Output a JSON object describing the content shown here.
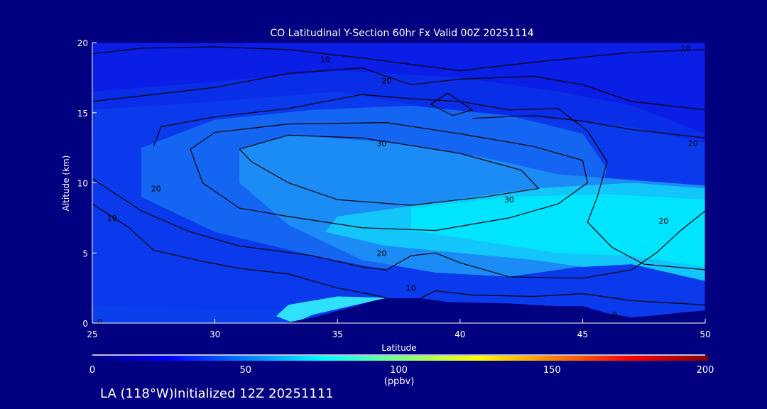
{
  "chart_data": {
    "type": "contour",
    "title": "CO Latitudinal Y-Section 60hr  Fx Valid 00Z 20251114",
    "xlabel": "Latitude",
    "ylabel": "Altitude (km)",
    "xlim": [
      25,
      50
    ],
    "ylim": [
      0,
      20
    ],
    "xticks": [
      "25",
      "30",
      "35",
      "40",
      "45",
      "50"
    ],
    "yticks": [
      "0",
      "5",
      "10",
      "15",
      "20"
    ],
    "colorbar": {
      "min": 0,
      "max": 200,
      "ticks": [
        "0",
        "50",
        "100",
        "150",
        "200"
      ],
      "unit": "(ppbv)",
      "stops": [
        [
          0,
          "#000080"
        ],
        [
          25,
          "#0000ff"
        ],
        [
          50,
          "#0080ff"
        ],
        [
          75,
          "#00ffff"
        ],
        [
          100,
          "#80ff80"
        ],
        [
          125,
          "#ffff00"
        ],
        [
          150,
          "#ff8000"
        ],
        [
          175,
          "#ff0000"
        ],
        [
          200,
          "#800000"
        ]
      ]
    },
    "filled_regions": [
      {
        "level": 15,
        "color": "#0a1ee6",
        "points": [
          [
            25,
            20
          ],
          [
            50,
            20
          ],
          [
            50,
            13.5
          ],
          [
            47,
            15.5
          ],
          [
            44,
            16.5
          ],
          [
            40,
            17.5
          ],
          [
            35,
            18
          ],
          [
            30,
            17.2
          ],
          [
            25,
            16.5
          ]
        ]
      },
      {
        "level": 20,
        "color": "#0a2ee8",
        "points": [
          [
            25,
            16.5
          ],
          [
            30,
            17.2
          ],
          [
            35,
            18
          ],
          [
            40,
            17.5
          ],
          [
            44,
            16.5
          ],
          [
            47,
            15.5
          ],
          [
            50,
            13.5
          ],
          [
            50,
            12.8
          ],
          [
            47,
            14
          ],
          [
            44,
            14.5
          ],
          [
            40,
            15
          ],
          [
            35,
            16.5
          ],
          [
            30,
            15.8
          ],
          [
            25,
            15.2
          ]
        ]
      },
      {
        "level": 25,
        "color": "#1466f2",
        "points": [
          [
            27,
            12.5
          ],
          [
            30,
            14.5
          ],
          [
            34,
            15.2
          ],
          [
            38,
            15.5
          ],
          [
            42,
            14.8
          ],
          [
            45,
            13.5
          ],
          [
            46,
            11
          ],
          [
            45.5,
            8
          ],
          [
            46,
            5.5
          ],
          [
            44,
            4.2
          ],
          [
            41,
            4.3
          ],
          [
            39,
            5
          ],
          [
            38,
            5
          ],
          [
            37,
            3.8
          ],
          [
            34,
            4.8
          ],
          [
            30,
            6.5
          ],
          [
            27,
            9
          ]
        ]
      },
      {
        "level": 35,
        "color": "#1b8cf5",
        "points": [
          [
            31,
            12.4
          ],
          [
            33,
            13.4
          ],
          [
            37,
            12.9
          ],
          [
            41,
            11.8
          ],
          [
            44,
            10.6
          ],
          [
            50,
            9.8
          ],
          [
            50,
            6
          ],
          [
            46,
            4.3
          ],
          [
            42,
            3.3
          ],
          [
            39,
            3.6
          ],
          [
            36,
            4.5
          ],
          [
            33,
            7
          ],
          [
            31,
            10
          ]
        ]
      },
      {
        "level": 40,
        "color": "#12c6fb",
        "points": [
          [
            35,
            7.6
          ],
          [
            39,
            8.6
          ],
          [
            43,
            9.6
          ],
          [
            47,
            10
          ],
          [
            50,
            9.6
          ],
          [
            50,
            3
          ],
          [
            47,
            4.2
          ],
          [
            45,
            4
          ],
          [
            43,
            4.5
          ],
          [
            40,
            5
          ],
          [
            37,
            5.5
          ],
          [
            34.5,
            6.5
          ]
        ]
      },
      {
        "level": 45,
        "color": "#00e4ff",
        "points": [
          [
            38,
            8.2
          ],
          [
            42,
            9
          ],
          [
            46,
            9.2
          ],
          [
            50,
            8.8
          ],
          [
            50,
            4
          ],
          [
            47,
            4.8
          ],
          [
            44,
            5
          ],
          [
            41,
            5.8
          ],
          [
            38,
            6.6
          ]
        ]
      },
      {
        "level": 12,
        "color": "#0a40ec",
        "points": [
          [
            25,
            0
          ],
          [
            25,
            1.2
          ],
          [
            30,
            1.0
          ],
          [
            33,
            1.0
          ],
          [
            34,
            0.3
          ],
          [
            33,
            0
          ]
        ]
      },
      {
        "level": 40,
        "color": "#30e0ff",
        "points": [
          [
            33.2,
            0
          ],
          [
            34,
            0.6
          ],
          [
            36,
            1.4
          ],
          [
            37,
            1.8
          ],
          [
            35,
            1.9
          ],
          [
            33,
            1.3
          ],
          [
            32.5,
            0.5
          ]
        ]
      }
    ],
    "terrain": {
      "color": "#000080",
      "points": [
        [
          32.8,
          0
        ],
        [
          34,
          0.4
        ],
        [
          35.5,
          1.1
        ],
        [
          36.5,
          1.6
        ],
        [
          37,
          1.77
        ],
        [
          38.4,
          1.77
        ],
        [
          39.5,
          1.5
        ],
        [
          42,
          1.4
        ],
        [
          44,
          1.2
        ],
        [
          45,
          1.2
        ],
        [
          46,
          0.7
        ],
        [
          47,
          0.4
        ],
        [
          48,
          0.55
        ],
        [
          49,
          0.75
        ],
        [
          50,
          0.9
        ],
        [
          50,
          0
        ]
      ]
    },
    "contours": [
      {
        "level": 10,
        "points": [
          [
            25,
            19.2
          ],
          [
            27,
            19.6
          ],
          [
            30,
            19.7
          ],
          [
            33,
            19.5
          ],
          [
            36,
            18.9
          ],
          [
            40,
            18.0
          ],
          [
            43,
            18.6
          ],
          [
            47,
            19.3
          ],
          [
            50,
            19.5
          ]
        ]
      },
      {
        "level": 10,
        "points": [
          [
            25,
            8.5
          ],
          [
            26.5,
            6.8
          ],
          [
            27.5,
            5.2
          ],
          [
            29.5,
            4.4
          ],
          [
            31,
            3.9
          ],
          [
            33,
            3.5
          ],
          [
            35,
            2.5
          ],
          [
            36.5,
            2.0
          ],
          [
            37,
            1.8
          ]
        ]
      },
      {
        "level": 10,
        "points": [
          [
            38.4,
            1.8
          ],
          [
            39,
            2.3
          ],
          [
            40.5,
            2.0
          ],
          [
            43,
            1.9
          ],
          [
            45,
            2.1
          ],
          [
            47,
            1.6
          ],
          [
            49,
            1.4
          ],
          [
            50,
            1.3
          ]
        ]
      },
      {
        "level": 20,
        "points": [
          [
            25,
            15.8
          ],
          [
            28,
            16.4
          ],
          [
            30,
            16.8
          ],
          [
            33,
            17.8
          ],
          [
            36,
            18.2
          ],
          [
            38,
            17.0
          ],
          [
            40,
            17.4
          ],
          [
            43,
            17.6
          ],
          [
            45,
            17.0
          ],
          [
            47,
            15.8
          ],
          [
            50,
            15.2
          ]
        ]
      },
      {
        "level": 20,
        "points": [
          [
            40.5,
            14.6
          ],
          [
            43,
            14.8
          ],
          [
            45,
            14.4
          ],
          [
            47,
            13.8
          ],
          [
            50,
            13.2
          ]
        ]
      },
      {
        "level": 20,
        "points": [
          [
            25,
            10.3
          ],
          [
            27,
            8
          ],
          [
            29,
            6.5
          ],
          [
            31,
            5.5
          ],
          [
            34,
            4.8
          ],
          [
            36,
            4.0
          ],
          [
            37,
            3.8
          ],
          [
            38,
            4.8
          ],
          [
            39,
            5.0
          ],
          [
            40,
            4.3
          ],
          [
            42,
            3.3
          ],
          [
            45,
            3.2
          ],
          [
            47,
            3.8
          ],
          [
            48,
            5.0
          ],
          [
            49,
            6.6
          ],
          [
            50,
            8.0
          ]
        ]
      },
      {
        "level": 20,
        "points": [
          [
            27.5,
            12.6
          ],
          [
            27.8,
            14
          ],
          [
            30,
            14.7
          ],
          [
            33,
            15.3
          ],
          [
            36,
            16.3
          ],
          [
            38,
            16.0
          ],
          [
            40,
            15.8
          ],
          [
            42,
            15.2
          ],
          [
            44,
            15.3
          ],
          [
            45.2,
            13.7
          ],
          [
            46,
            11.5
          ],
          [
            45.6,
            9
          ],
          [
            45.2,
            7.2
          ],
          [
            46.2,
            5.4
          ],
          [
            47.5,
            4.2
          ],
          [
            50,
            3.8
          ]
        ]
      },
      {
        "level": 30,
        "points": [
          [
            31,
            12.4
          ],
          [
            33,
            13.4
          ],
          [
            36,
            13.2
          ],
          [
            37.5,
            12.8
          ],
          [
            40,
            12.1
          ],
          [
            42.5,
            10.9
          ],
          [
            43.2,
            9.6
          ],
          [
            41,
            9.0
          ],
          [
            38,
            8.4
          ],
          [
            35,
            8.8
          ],
          [
            33,
            10
          ],
          [
            31.5,
            11.5
          ],
          [
            31,
            12.4
          ]
        ]
      },
      {
        "level": 30,
        "points": [
          [
            29,
            12.4
          ],
          [
            30,
            13.6
          ],
          [
            33,
            14.2
          ],
          [
            37,
            14.3
          ],
          [
            40,
            13.5
          ],
          [
            43,
            12.6
          ],
          [
            45,
            11.6
          ],
          [
            45.2,
            10
          ],
          [
            44,
            8.5
          ],
          [
            42,
            7.5
          ],
          [
            39,
            6.6
          ],
          [
            36,
            6.8
          ],
          [
            33,
            7.6
          ],
          [
            31,
            8.2
          ],
          [
            29.5,
            10
          ],
          [
            29,
            12.4
          ]
        ]
      },
      {
        "level": 20,
        "points": [
          [
            38.8,
            15.6
          ],
          [
            39.5,
            16.4
          ],
          [
            40.5,
            15.2
          ],
          [
            39.7,
            14.8
          ],
          [
            38.8,
            15.6
          ]
        ]
      }
    ],
    "contour_labels": [
      {
        "text": "10",
        "at": [
          34.5,
          18.8
        ]
      },
      {
        "text": "10",
        "at": [
          49.2,
          19.6
        ]
      },
      {
        "text": "20",
        "at": [
          37,
          17.3
        ]
      },
      {
        "text": "30",
        "at": [
          36.8,
          12.8
        ]
      },
      {
        "text": "20",
        "at": [
          27.6,
          9.6
        ]
      },
      {
        "text": "10",
        "at": [
          25.8,
          7.5
        ]
      },
      {
        "text": "30",
        "at": [
          42,
          8.8
        ]
      },
      {
        "text": "20",
        "at": [
          36.8,
          5.0
        ]
      },
      {
        "text": "10",
        "at": [
          38,
          2.5
        ]
      },
      {
        "text": "20",
        "at": [
          48.3,
          7.3
        ]
      },
      {
        "text": "20",
        "at": [
          49.5,
          12.8
        ]
      },
      {
        "text": "0",
        "at": [
          25.3,
          0.1
        ]
      },
      {
        "text": "0",
        "at": [
          46.3,
          0.6
        ]
      }
    ]
  },
  "footer": {
    "location": "LA (118°W)Initialized 12Z 20251111"
  }
}
